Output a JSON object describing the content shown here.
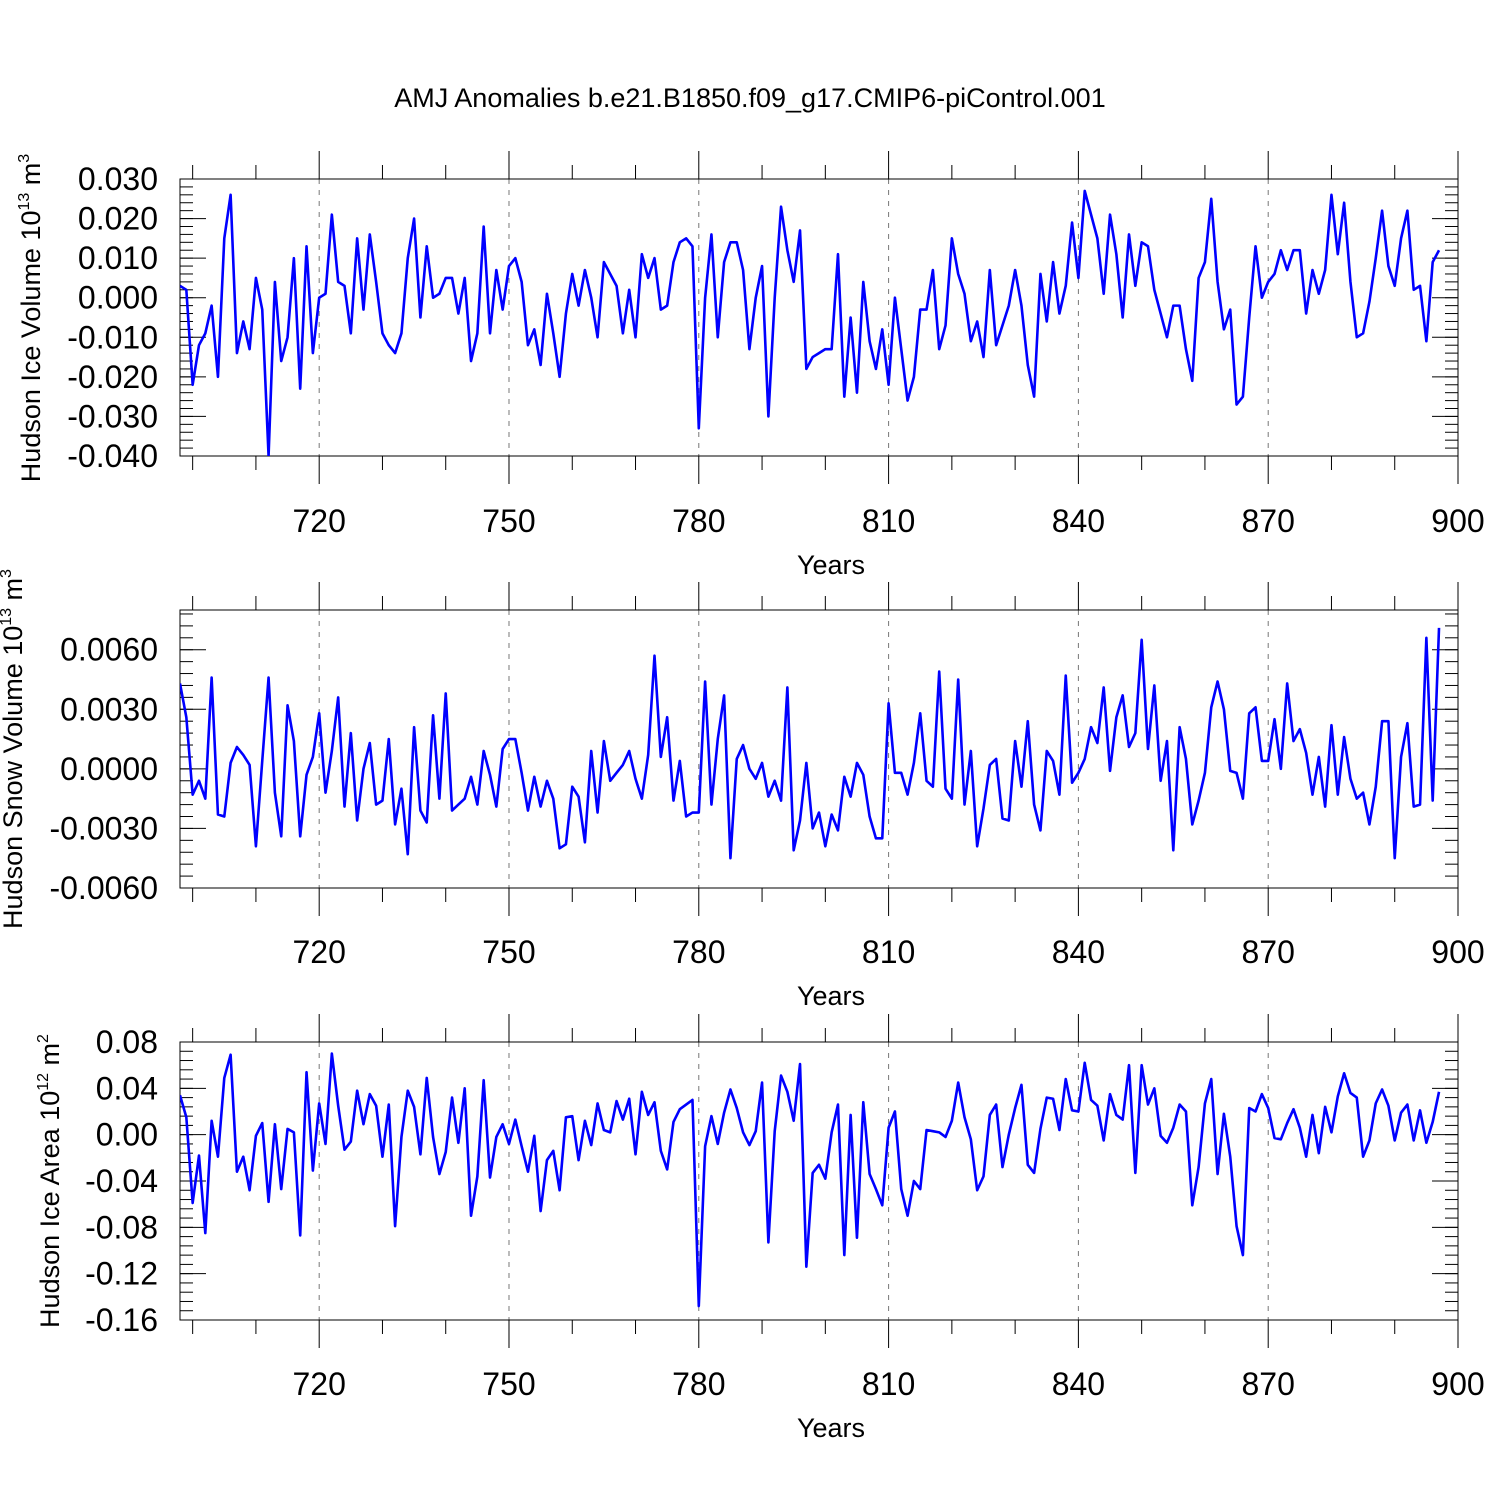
{
  "title": "AMJ Anomalies b.e21.B1850.f09_g17.CMIP6-piControl.001",
  "colors": {
    "line": "#0000ff",
    "axis": "#000000",
    "grid": "#777777"
  },
  "chart_data": [
    {
      "type": "line",
      "name": "Hudson Ice Volume",
      "ylabel": "Hudson Ice Volume 10",
      "ylabel_sup": "13",
      "ylabel_unit": " m",
      "ylabel_unit_sup": "3",
      "xlabel": "Years",
      "xlim": [
        698,
        900
      ],
      "ylim": [
        -0.04,
        0.03
      ],
      "xticks": [
        720,
        750,
        780,
        810,
        840,
        870,
        900
      ],
      "xtick_labels": [
        "720",
        "750",
        "780",
        "810",
        "840",
        "870",
        "900"
      ],
      "yticks": [
        0.03,
        0.02,
        0.01,
        0.0,
        -0.01,
        -0.02,
        -0.03,
        -0.04
      ],
      "ytick_labels": [
        "0.030",
        "0.020",
        "0.010",
        "0.000",
        "-0.010",
        "-0.020",
        "-0.030",
        "-0.040"
      ],
      "grid": "vertical-dashed",
      "series": [
        {
          "name": "Hudson Ice Volume anomaly",
          "x_start": 698,
          "values": [
            0.003,
            0.002,
            -0.022,
            -0.012,
            -0.009,
            -0.002,
            -0.02,
            0.015,
            0.026,
            -0.014,
            -0.006,
            -0.013,
            0.005,
            -0.003,
            -0.04,
            0.004,
            -0.016,
            -0.01,
            0.01,
            -0.023,
            0.013,
            -0.014,
            0.0,
            0.001,
            0.021,
            0.004,
            0.003,
            -0.009,
            0.015,
            -0.003,
            0.016,
            0.004,
            -0.009,
            -0.012,
            -0.014,
            -0.009,
            0.01,
            0.02,
            -0.005,
            0.013,
            0.0,
            0.001,
            0.005,
            0.005,
            -0.004,
            0.005,
            -0.016,
            -0.009,
            0.018,
            -0.009,
            0.007,
            -0.003,
            0.008,
            0.01,
            0.004,
            -0.012,
            -0.008,
            -0.017,
            0.001,
            -0.009,
            -0.02,
            -0.004,
            0.006,
            -0.002,
            0.007,
            0.0,
            -0.01,
            0.009,
            0.006,
            0.003,
            -0.009,
            0.002,
            -0.01,
            0.011,
            0.005,
            0.01,
            -0.003,
            -0.002,
            0.009,
            0.014,
            0.015,
            0.013,
            -0.033,
            0.0,
            0.016,
            -0.01,
            0.009,
            0.014,
            0.014,
            0.007,
            -0.013,
            0.0,
            0.008,
            -0.03,
            0.0,
            0.023,
            0.012,
            0.004,
            0.017,
            -0.018,
            -0.015,
            -0.014,
            -0.013,
            -0.013,
            0.011,
            -0.025,
            -0.005,
            -0.024,
            0.004,
            -0.011,
            -0.018,
            -0.008,
            -0.022,
            0.0,
            -0.013,
            -0.026,
            -0.02,
            -0.003,
            -0.003,
            0.007,
            -0.013,
            -0.007,
            0.015,
            0.006,
            0.001,
            -0.011,
            -0.006,
            -0.015,
            0.007,
            -0.012,
            -0.007,
            -0.002,
            0.007,
            -0.002,
            -0.017,
            -0.025,
            0.006,
            -0.006,
            0.009,
            -0.004,
            0.003,
            0.019,
            0.005,
            0.027,
            0.021,
            0.015,
            0.001,
            0.021,
            0.011,
            -0.005,
            0.016,
            0.003,
            0.014,
            0.013,
            0.002,
            -0.004,
            -0.01,
            -0.002,
            -0.002,
            -0.013,
            -0.021,
            0.005,
            0.009,
            0.025,
            0.004,
            -0.008,
            -0.003,
            -0.027,
            -0.025,
            -0.005,
            0.013,
            0.0,
            0.004,
            0.006,
            0.012,
            0.007,
            0.012,
            0.012,
            -0.004,
            0.007,
            0.001,
            0.007,
            0.026,
            0.011,
            0.024,
            0.004,
            -0.01,
            -0.009,
            -0.001,
            0.01,
            0.022,
            0.008,
            0.003,
            0.015,
            0.022,
            0.002,
            0.003,
            -0.011,
            0.009,
            0.012
          ]
        }
      ]
    },
    {
      "type": "line",
      "name": "Hudson Snow Volume",
      "ylabel": "Hudson Snow Volume 10",
      "ylabel_sup": "13",
      "ylabel_unit": " m",
      "ylabel_unit_sup": "3",
      "xlabel": "Years",
      "xlim": [
        698,
        900
      ],
      "ylim": [
        -0.006,
        0.008
      ],
      "xticks": [
        720,
        750,
        780,
        810,
        840,
        870,
        900
      ],
      "xtick_labels": [
        "720",
        "750",
        "780",
        "810",
        "840",
        "870",
        "900"
      ],
      "yticks": [
        0.006,
        0.003,
        0.0,
        -0.003,
        -0.006
      ],
      "ytick_labels": [
        "0.0060",
        "0.0030",
        "0.0000",
        "-0.0030",
        "-0.0060"
      ],
      "grid": "vertical-dashed",
      "series": [
        {
          "name": "Hudson Snow Volume anomaly",
          "x_start": 698,
          "values": [
            0.0043,
            0.0026,
            -0.0013,
            -0.0006,
            -0.0015,
            0.0046,
            -0.0023,
            -0.0024,
            0.0003,
            0.0011,
            0.0007,
            0.0002,
            -0.0039,
            0.0004,
            0.0046,
            -0.0012,
            -0.0034,
            0.0032,
            0.0014,
            -0.0034,
            -0.0003,
            0.0006,
            0.0028,
            -0.0012,
            0.0009,
            0.0036,
            -0.0019,
            0.0018,
            -0.0026,
            0.0,
            0.0013,
            -0.0018,
            -0.0016,
            0.0015,
            -0.0028,
            -0.001,
            -0.0043,
            0.0021,
            -0.0021,
            -0.0027,
            0.0027,
            -0.0015,
            0.0038,
            -0.0021,
            -0.0018,
            -0.0015,
            -0.0004,
            -0.0018,
            0.0009,
            -0.0003,
            -0.0019,
            0.001,
            0.0015,
            0.0015,
            -0.0002,
            -0.0021,
            -0.0004,
            -0.0019,
            -0.0006,
            -0.0015,
            -0.004,
            -0.0038,
            -0.0009,
            -0.0014,
            -0.0037,
            0.0009,
            -0.0022,
            0.0014,
            -0.0006,
            -0.0002,
            0.0002,
            0.0009,
            -0.0005,
            -0.0015,
            0.0007,
            0.0057,
            0.0006,
            0.0026,
            -0.0016,
            0.0004,
            -0.0024,
            -0.0022,
            -0.0022,
            0.0044,
            -0.0018,
            0.0015,
            0.0037,
            -0.0045,
            0.0005,
            0.0012,
            0.0,
            -0.0005,
            0.0003,
            -0.0014,
            -0.0006,
            -0.0016,
            0.0041,
            -0.0041,
            -0.0026,
            0.0003,
            -0.003,
            -0.0022,
            -0.0039,
            -0.0023,
            -0.0031,
            -0.0004,
            -0.0014,
            0.0003,
            -0.0003,
            -0.0024,
            -0.0035,
            -0.0035,
            0.0033,
            -0.0002,
            -0.0002,
            -0.0013,
            0.0003,
            0.0028,
            -0.0006,
            -0.0009,
            0.0049,
            -0.001,
            -0.0015,
            0.0045,
            -0.0018,
            0.0009,
            -0.0039,
            -0.002,
            0.0002,
            0.0005,
            -0.0025,
            -0.0026,
            0.0014,
            -0.0009,
            0.0024,
            -0.0018,
            -0.0031,
            0.0009,
            0.0004,
            -0.0013,
            0.0047,
            -0.0007,
            -0.0002,
            0.0005,
            0.0021,
            0.0013,
            0.0041,
            -0.0001,
            0.0026,
            0.0037,
            0.0011,
            0.0018,
            0.0065,
            0.001,
            0.0042,
            -0.0006,
            0.0014,
            -0.0041,
            0.0021,
            0.0005,
            -0.0028,
            -0.0016,
            -0.0002,
            0.0031,
            0.0044,
            0.003,
            -0.0001,
            -0.0002,
            -0.0015,
            0.0028,
            0.0031,
            0.0004,
            0.0004,
            0.0025,
            0.0,
            0.0043,
            0.0014,
            0.002,
            0.0008,
            -0.0013,
            0.0006,
            -0.0019,
            0.0022,
            -0.0013,
            0.0016,
            -0.0005,
            -0.0015,
            -0.0012,
            -0.0028,
            -0.0009,
            0.0024,
            0.0024,
            -0.0045,
            0.0006,
            0.0023,
            -0.0019,
            -0.0018,
            0.0066,
            -0.0016,
            0.0071
          ]
        }
      ]
    },
    {
      "type": "line",
      "name": "Hudson Ice Area",
      "ylabel": "Hudson Ice Area 10",
      "ylabel_sup": "12",
      "ylabel_unit": " m",
      "ylabel_unit_sup": "2",
      "xlabel": "Years",
      "xlim": [
        698,
        900
      ],
      "ylim": [
        -0.16,
        0.08
      ],
      "xticks": [
        720,
        750,
        780,
        810,
        840,
        870,
        900
      ],
      "xtick_labels": [
        "720",
        "750",
        "780",
        "810",
        "840",
        "870",
        "900"
      ],
      "yticks": [
        0.08,
        0.04,
        0.0,
        -0.04,
        -0.08,
        -0.12,
        -0.16
      ],
      "ytick_labels": [
        "0.08",
        "0.04",
        "0.00",
        "-0.04",
        "-0.08",
        "-0.12",
        "-0.16"
      ],
      "grid": "vertical-dashed",
      "series": [
        {
          "name": "Hudson Ice Area anomaly",
          "x_start": 698,
          "values": [
            0.034,
            0.015,
            -0.059,
            -0.018,
            -0.085,
            0.012,
            -0.019,
            0.049,
            0.069,
            -0.032,
            -0.019,
            -0.048,
            -0.001,
            0.01,
            -0.058,
            0.009,
            -0.047,
            0.005,
            0.002,
            -0.087,
            0.054,
            -0.031,
            0.027,
            -0.008,
            0.07,
            0.025,
            -0.013,
            -0.006,
            0.038,
            0.009,
            0.035,
            0.025,
            -0.019,
            0.026,
            -0.079,
            -0.002,
            0.038,
            0.024,
            -0.017,
            0.049,
            -0.002,
            -0.034,
            -0.015,
            0.032,
            -0.007,
            0.04,
            -0.07,
            -0.036,
            0.047,
            -0.037,
            -0.002,
            0.009,
            -0.008,
            0.013,
            -0.01,
            -0.032,
            -0.001,
            -0.066,
            -0.022,
            -0.014,
            -0.048,
            0.015,
            0.016,
            -0.022,
            0.012,
            -0.009,
            0.027,
            0.004,
            0.002,
            0.029,
            0.013,
            0.031,
            -0.017,
            0.037,
            0.017,
            0.028,
            -0.014,
            -0.03,
            0.011,
            0.022,
            0.026,
            0.03,
            -0.148,
            -0.01,
            0.016,
            -0.008,
            0.019,
            0.039,
            0.023,
            0.002,
            -0.009,
            0.003,
            0.045,
            -0.093,
            0.003,
            0.051,
            0.037,
            0.012,
            0.061,
            -0.114,
            -0.033,
            -0.026,
            -0.038,
            0.002,
            0.026,
            -0.104,
            0.017,
            -0.089,
            0.028,
            -0.034,
            -0.047,
            -0.061,
            0.006,
            0.02,
            -0.047,
            -0.07,
            -0.04,
            -0.047,
            0.004,
            0.003,
            0.002,
            -0.002,
            0.012,
            0.045,
            0.015,
            -0.004,
            -0.048,
            -0.036,
            0.017,
            0.026,
            -0.028,
            0.0,
            0.023,
            0.043,
            -0.026,
            -0.033,
            0.005,
            0.032,
            0.031,
            0.004,
            0.048,
            0.021,
            0.02,
            0.062,
            0.03,
            0.025,
            -0.005,
            0.035,
            0.017,
            0.013,
            0.06,
            -0.033,
            0.06,
            0.026,
            0.04,
            -0.001,
            -0.007,
            0.006,
            0.026,
            0.02,
            -0.061,
            -0.028,
            0.027,
            0.048,
            -0.034,
            0.018,
            -0.019,
            -0.079,
            -0.104,
            0.023,
            0.02,
            0.035,
            0.023,
            -0.003,
            -0.004,
            0.01,
            0.022,
            0.006,
            -0.019,
            0.017,
            -0.016,
            0.024,
            0.002,
            0.033,
            0.053,
            0.036,
            0.032,
            -0.019,
            -0.005,
            0.027,
            0.039,
            0.025,
            -0.005,
            0.019,
            0.026,
            -0.005,
            0.021,
            -0.007,
            0.011,
            0.037
          ]
        }
      ]
    }
  ]
}
